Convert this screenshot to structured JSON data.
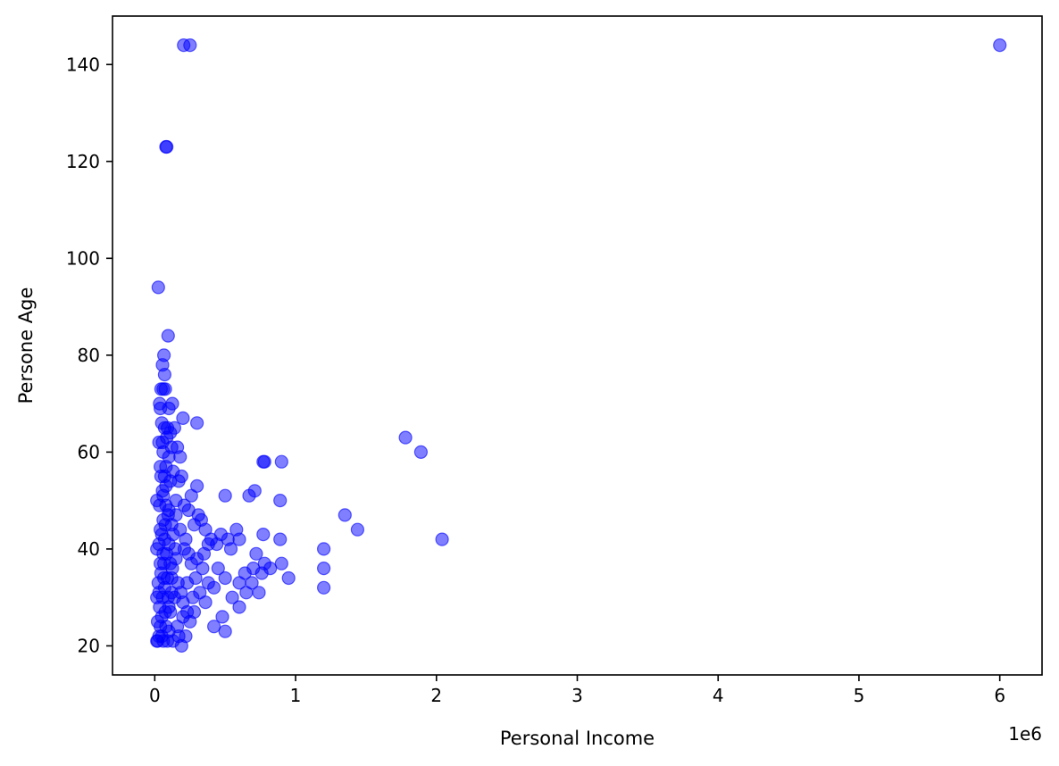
{
  "chart_data": {
    "type": "scatter",
    "title": "",
    "xlabel": "Personal Income",
    "ylabel": "Persone Age",
    "x_offset_label": "1e6",
    "xlim": [
      -300000,
      6300000
    ],
    "ylim": [
      14,
      150
    ],
    "x_ticks": [
      0,
      1,
      2,
      3,
      4,
      5,
      6
    ],
    "y_ticks": [
      20,
      40,
      60,
      80,
      100,
      120,
      140
    ],
    "grid": false,
    "legend": "none",
    "marker_color": "#0000ff",
    "marker_opacity": 0.5,
    "series": [
      {
        "points": [
          [
            6000000,
            144
          ],
          [
            205000,
            144
          ],
          [
            250000,
            144
          ],
          [
            80000,
            123
          ],
          [
            85000,
            123
          ],
          [
            25000,
            94
          ],
          [
            95000,
            84
          ],
          [
            65000,
            80
          ],
          [
            55000,
            78
          ],
          [
            70000,
            76
          ],
          [
            45000,
            73
          ],
          [
            60000,
            73
          ],
          [
            75000,
            73
          ],
          [
            35000,
            70
          ],
          [
            40000,
            69
          ],
          [
            125000,
            70
          ],
          [
            100000,
            69
          ],
          [
            200000,
            67
          ],
          [
            300000,
            66
          ],
          [
            50000,
            66
          ],
          [
            70000,
            65
          ],
          [
            90000,
            65
          ],
          [
            110000,
            64
          ],
          [
            140000,
            65
          ],
          [
            1780000,
            63
          ],
          [
            1890000,
            60
          ],
          [
            30000,
            62
          ],
          [
            55000,
            62
          ],
          [
            85000,
            63
          ],
          [
            120000,
            61
          ],
          [
            160000,
            61
          ],
          [
            60000,
            60
          ],
          [
            100000,
            59
          ],
          [
            180000,
            59
          ],
          [
            770000,
            58
          ],
          [
            780000,
            58
          ],
          [
            900000,
            58
          ],
          [
            40000,
            57
          ],
          [
            80000,
            57
          ],
          [
            130000,
            56
          ],
          [
            190000,
            55
          ],
          [
            70000,
            55
          ],
          [
            110000,
            54
          ],
          [
            170000,
            54
          ],
          [
            300000,
            53
          ],
          [
            710000,
            52
          ],
          [
            500000,
            51
          ],
          [
            670000,
            51
          ],
          [
            260000,
            51
          ],
          [
            890000,
            50
          ],
          [
            60000,
            51
          ],
          [
            150000,
            50
          ],
          [
            210000,
            49
          ],
          [
            240000,
            48
          ],
          [
            1350000,
            47
          ],
          [
            1440000,
            44
          ],
          [
            2040000,
            42
          ],
          [
            310000,
            47
          ],
          [
            330000,
            46
          ],
          [
            280000,
            45
          ],
          [
            360000,
            44
          ],
          [
            580000,
            44
          ],
          [
            470000,
            43
          ],
          [
            520000,
            42
          ],
          [
            770000,
            43
          ],
          [
            890000,
            42
          ],
          [
            400000,
            42
          ],
          [
            440000,
            41
          ],
          [
            540000,
            40
          ],
          [
            600000,
            42
          ],
          [
            1200000,
            40
          ],
          [
            1200000,
            36
          ],
          [
            1200000,
            32
          ],
          [
            950000,
            34
          ],
          [
            900000,
            37
          ],
          [
            780000,
            37
          ],
          [
            820000,
            36
          ],
          [
            720000,
            39
          ],
          [
            760000,
            35
          ],
          [
            700000,
            36
          ],
          [
            640000,
            35
          ],
          [
            600000,
            33
          ],
          [
            650000,
            31
          ],
          [
            740000,
            31
          ],
          [
            690000,
            33
          ],
          [
            600000,
            28
          ],
          [
            550000,
            30
          ],
          [
            480000,
            26
          ],
          [
            500000,
            23
          ],
          [
            420000,
            24
          ],
          [
            380000,
            33
          ],
          [
            360000,
            29
          ],
          [
            320000,
            31
          ],
          [
            340000,
            36
          ],
          [
            450000,
            36
          ],
          [
            500000,
            34
          ],
          [
            420000,
            32
          ],
          [
            300000,
            38
          ],
          [
            280000,
            27
          ],
          [
            250000,
            25
          ],
          [
            220000,
            22
          ],
          [
            190000,
            20
          ],
          [
            160000,
            24
          ],
          [
            200000,
            29
          ],
          [
            230000,
            33
          ],
          [
            260000,
            37
          ],
          [
            210000,
            40
          ],
          [
            180000,
            44
          ],
          [
            150000,
            47
          ],
          [
            130000,
            43
          ],
          [
            150000,
            38
          ],
          [
            120000,
            34
          ],
          [
            140000,
            30
          ],
          [
            110000,
            27
          ],
          [
            100000,
            23
          ],
          [
            90000,
            21
          ],
          [
            130000,
            21
          ],
          [
            170000,
            22
          ],
          [
            20000,
            21
          ],
          [
            30000,
            22
          ],
          [
            40000,
            24
          ],
          [
            50000,
            26
          ],
          [
            20000,
            25
          ],
          [
            35000,
            28
          ],
          [
            55000,
            30
          ],
          [
            70000,
            32
          ],
          [
            25000,
            33
          ],
          [
            45000,
            35
          ],
          [
            65000,
            37
          ],
          [
            85000,
            39
          ],
          [
            30000,
            41
          ],
          [
            50000,
            43
          ],
          [
            75000,
            45
          ],
          [
            95000,
            47
          ],
          [
            35000,
            49
          ],
          [
            55000,
            52
          ],
          [
            80000,
            53
          ],
          [
            45000,
            55
          ],
          [
            15000,
            21
          ],
          [
            15000,
            30
          ],
          [
            15000,
            40
          ],
          [
            15000,
            50
          ],
          [
            60000,
            21
          ],
          [
            80000,
            24
          ],
          [
            100000,
            28
          ],
          [
            120000,
            31
          ],
          [
            90000,
            34
          ],
          [
            110000,
            37
          ],
          [
            100000,
            41
          ],
          [
            120000,
            45
          ],
          [
            100000,
            48
          ],
          [
            80000,
            49
          ],
          [
            60000,
            46
          ],
          [
            40000,
            44
          ],
          [
            70000,
            42
          ],
          [
            60000,
            39
          ],
          [
            40000,
            37
          ],
          [
            30000,
            31
          ],
          [
            50000,
            22
          ],
          [
            75000,
            27
          ],
          [
            95000,
            30
          ],
          [
            65000,
            34
          ],
          [
            125000,
            36
          ],
          [
            145000,
            40
          ],
          [
            165000,
            33
          ],
          [
            185000,
            31
          ],
          [
            200000,
            26
          ],
          [
            230000,
            27
          ],
          [
            270000,
            30
          ],
          [
            290000,
            34
          ],
          [
            240000,
            39
          ],
          [
            220000,
            42
          ],
          [
            350000,
            39
          ],
          [
            380000,
            41
          ]
        ]
      }
    ]
  }
}
